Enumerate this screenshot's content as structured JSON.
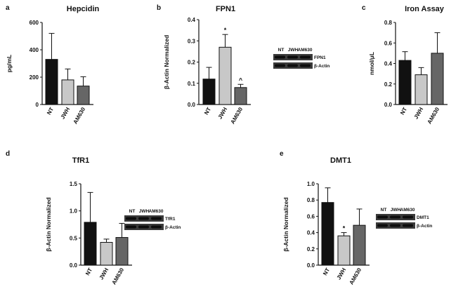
{
  "chart_data": [
    {
      "panel": "a",
      "type": "bar",
      "title": "Hepcidin",
      "ylabel": "pg/mL",
      "ylim": [
        0,
        600
      ],
      "yticks": [
        "0",
        "200",
        "400",
        "600"
      ],
      "categories": [
        "NT",
        "JWH",
        "AM630"
      ],
      "values": [
        330,
        180,
        135
      ],
      "errors": [
        190,
        80,
        68
      ],
      "colors": [
        "#111111",
        "#c8c8c8",
        "#666666"
      ],
      "annotations": [
        "",
        "",
        ""
      ],
      "blot": null
    },
    {
      "panel": "b",
      "type": "bar",
      "title": "FPN1",
      "ylabel": "β-Actin Normalized",
      "ylim": [
        0,
        0.4
      ],
      "yticks": [
        "0.0",
        "0.1",
        "0.2",
        "0.3",
        "0.4"
      ],
      "categories": [
        "NT",
        "JWH",
        "AM630"
      ],
      "values": [
        0.12,
        0.27,
        0.08
      ],
      "errors": [
        0.055,
        0.06,
        0.015
      ],
      "colors": [
        "#111111",
        "#c8c8c8",
        "#666666"
      ],
      "annotations": [
        "",
        "*",
        "^"
      ],
      "blot": {
        "lanes": [
          "NT",
          "JWH",
          "AM630"
        ],
        "bands": [
          "FPN1",
          "β-Actin"
        ]
      }
    },
    {
      "panel": "c",
      "type": "bar",
      "title": "Iron Assay",
      "ylabel": "nmol/μL",
      "ylim": [
        0,
        0.8
      ],
      "yticks": [
        "0.0",
        "0.2",
        "0.4",
        "0.6",
        "0.8"
      ],
      "categories": [
        "NT",
        "JWH",
        "AM630"
      ],
      "values": [
        0.43,
        0.29,
        0.5
      ],
      "errors": [
        0.085,
        0.07,
        0.2
      ],
      "colors": [
        "#111111",
        "#c8c8c8",
        "#666666"
      ],
      "annotations": [
        "",
        "",
        ""
      ],
      "blot": null
    },
    {
      "panel": "d",
      "type": "bar",
      "title": "TfR1",
      "ylabel": "β-Actin Normalized",
      "ylim": [
        0,
        1.5
      ],
      "yticks": [
        "0.0",
        "0.5",
        "1.0",
        "1.5"
      ],
      "categories": [
        "NT",
        "JWH",
        "AM630"
      ],
      "values": [
        0.79,
        0.42,
        0.51
      ],
      "errors": [
        0.55,
        0.06,
        0.26
      ],
      "colors": [
        "#111111",
        "#c8c8c8",
        "#666666"
      ],
      "annotations": [
        "",
        "",
        ""
      ],
      "blot": {
        "lanes": [
          "NT",
          "JWH",
          "AM630"
        ],
        "bands": [
          "TfR1",
          "β-Actin"
        ]
      }
    },
    {
      "panel": "e",
      "type": "bar",
      "title": "DMT1",
      "ylabel": "β-Actin Normalized",
      "ylim": [
        0,
        1.0
      ],
      "yticks": [
        "0.0",
        "0.2",
        "0.4",
        "0.6",
        "0.8",
        "1.0"
      ],
      "categories": [
        "NT",
        "JWH",
        "AM630"
      ],
      "values": [
        0.77,
        0.36,
        0.49
      ],
      "errors": [
        0.18,
        0.04,
        0.2
      ],
      "colors": [
        "#111111",
        "#c8c8c8",
        "#666666"
      ],
      "annotations": [
        "",
        "*",
        ""
      ],
      "blot": {
        "lanes": [
          "NT",
          "JWH",
          "AM630"
        ],
        "bands": [
          "DMT1",
          "β-Actin"
        ]
      }
    }
  ]
}
